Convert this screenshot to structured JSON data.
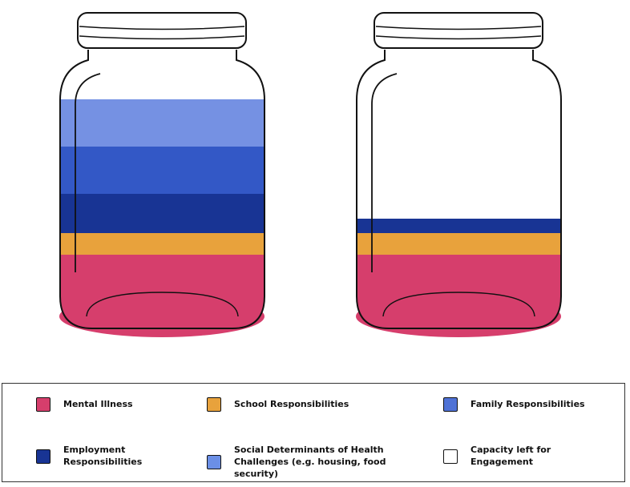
{
  "legend": {
    "items": [
      {
        "label": "Mental Illness",
        "color": "#d63e6c"
      },
      {
        "label": "School Responsibilities",
        "color": "#e8a23c"
      },
      {
        "label": "Family Responsibilities",
        "color": "#4f72d6"
      },
      {
        "label": "Employment Responsibilities",
        "color": "#183494"
      },
      {
        "label": "Social Determinants of Health Challenges (e.g. housing, food security)",
        "color": "#6b8fe6"
      },
      {
        "label": "Capacity left for Engagement",
        "color": "#ffffff"
      }
    ]
  }
}
